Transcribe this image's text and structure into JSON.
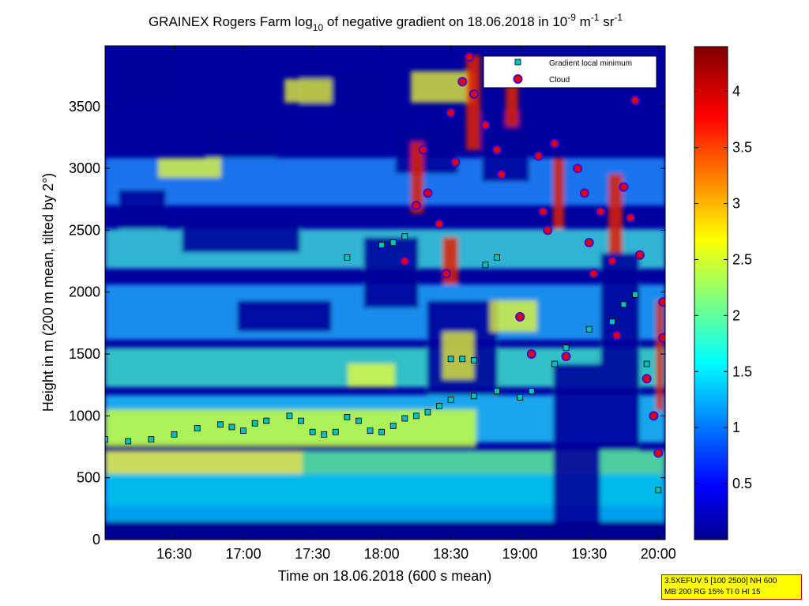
{
  "chart_data": {
    "type": "heatmap",
    "title_parts": {
      "prefix": "GRAINEX Rogers Farm log",
      "log_base": "10",
      "mid": " of negative gradient on 18.06.2018 in 10",
      "exp1": "-9",
      "unit1": " m",
      "exp2": "-1",
      "unit2": " sr",
      "exp3": "-1"
    },
    "xlabel": "Time on 18.06.2018 (600 s mean)",
    "ylabel": "Height in m (200 m mean, tilted by 2°)",
    "xlim": [
      "16:00",
      "20:03"
    ],
    "ylim": [
      0,
      3990
    ],
    "x_ticks": [
      "16:30",
      "17:00",
      "17:30",
      "18:00",
      "18:30",
      "19:00",
      "19:30",
      "20:00"
    ],
    "y_ticks": [
      "0",
      "500",
      "1000",
      "1500",
      "2000",
      "2500",
      "3000",
      "3500"
    ],
    "colorbar": {
      "range": [
        0,
        4.4
      ],
      "ticks": [
        "0.5",
        "1",
        "1.5",
        "2",
        "2.5",
        "3",
        "3.5",
        "4"
      ],
      "colormap": "jet"
    },
    "legend": {
      "placement": "top-right",
      "entries": [
        {
          "label": "Gradient local minimum",
          "marker": "square",
          "color": "#00bfbf"
        },
        {
          "label": "Cloud",
          "marker": "circle",
          "color": "#e00000"
        }
      ]
    },
    "gradient_local_minimum_series": [
      {
        "time": "16:00",
        "height": 810
      },
      {
        "time": "16:10",
        "height": 795
      },
      {
        "time": "16:20",
        "height": 810
      },
      {
        "time": "16:30",
        "height": 850
      },
      {
        "time": "16:40",
        "height": 900
      },
      {
        "time": "16:50",
        "height": 930
      },
      {
        "time": "16:55",
        "height": 910
      },
      {
        "time": "17:00",
        "height": 880
      },
      {
        "time": "17:05",
        "height": 940
      },
      {
        "time": "17:10",
        "height": 960
      },
      {
        "time": "17:20",
        "height": 1000
      },
      {
        "time": "17:25",
        "height": 960
      },
      {
        "time": "17:30",
        "height": 870
      },
      {
        "time": "17:35",
        "height": 850
      },
      {
        "time": "17:40",
        "height": 870
      },
      {
        "time": "17:45",
        "height": 990
      },
      {
        "time": "17:50",
        "height": 960
      },
      {
        "time": "17:55",
        "height": 880
      },
      {
        "time": "18:00",
        "height": 870
      },
      {
        "time": "18:05",
        "height": 920
      },
      {
        "time": "18:10",
        "height": 980
      },
      {
        "time": "18:15",
        "height": 1000
      },
      {
        "time": "18:20",
        "height": 1030
      },
      {
        "time": "18:25",
        "height": 1080
      },
      {
        "time": "18:30",
        "height": 1130
      },
      {
        "time": "18:40",
        "height": 1160
      },
      {
        "time": "18:50",
        "height": 1200
      },
      {
        "time": "19:00",
        "height": 1150
      },
      {
        "time": "19:05",
        "height": 1200
      },
      {
        "time": "18:30",
        "height": 1460
      },
      {
        "time": "18:35",
        "height": 1460
      },
      {
        "time": "18:40",
        "height": 1450
      },
      {
        "time": "18:00",
        "height": 2380
      },
      {
        "time": "18:05",
        "height": 2400
      },
      {
        "time": "18:10",
        "height": 2450
      },
      {
        "time": "18:45",
        "height": 2220
      },
      {
        "time": "18:50",
        "height": 2280
      },
      {
        "time": "17:45",
        "height": 2280
      },
      {
        "time": "19:15",
        "height": 1420
      },
      {
        "time": "19:20",
        "height": 1550
      },
      {
        "time": "19:30",
        "height": 1700
      },
      {
        "time": "19:40",
        "height": 1760
      },
      {
        "time": "19:45",
        "height": 1900
      },
      {
        "time": "19:50",
        "height": 1980
      },
      {
        "time": "19:55",
        "height": 1420
      },
      {
        "time": "20:00",
        "height": 400
      }
    ],
    "cloud_series": [
      {
        "time": "18:10",
        "height": 2250
      },
      {
        "time": "18:15",
        "height": 2700
      },
      {
        "time": "18:18",
        "height": 3150
      },
      {
        "time": "18:20",
        "height": 2800
      },
      {
        "time": "18:25",
        "height": 2550
      },
      {
        "time": "18:28",
        "height": 2150
      },
      {
        "time": "18:30",
        "height": 3450
      },
      {
        "time": "18:32",
        "height": 3050
      },
      {
        "time": "18:35",
        "height": 3700
      },
      {
        "time": "18:38",
        "height": 3900
      },
      {
        "time": "18:40",
        "height": 3600
      },
      {
        "time": "18:45",
        "height": 3350
      },
      {
        "time": "18:50",
        "height": 3150
      },
      {
        "time": "18:52",
        "height": 2950
      },
      {
        "time": "19:00",
        "height": 1800
      },
      {
        "time": "19:05",
        "height": 1500
      },
      {
        "time": "19:08",
        "height": 3100
      },
      {
        "time": "19:10",
        "height": 2650
      },
      {
        "time": "19:12",
        "height": 2500
      },
      {
        "time": "19:15",
        "height": 3200
      },
      {
        "time": "19:20",
        "height": 1480
      },
      {
        "time": "19:25",
        "height": 3000
      },
      {
        "time": "19:28",
        "height": 2800
      },
      {
        "time": "19:30",
        "height": 2400
      },
      {
        "time": "19:32",
        "height": 2150
      },
      {
        "time": "19:35",
        "height": 2650
      },
      {
        "time": "19:40",
        "height": 2250
      },
      {
        "time": "19:42",
        "height": 1650
      },
      {
        "time": "19:45",
        "height": 2850
      },
      {
        "time": "19:48",
        "height": 2600
      },
      {
        "time": "19:50",
        "height": 3550
      },
      {
        "time": "19:52",
        "height": 2300
      },
      {
        "time": "19:55",
        "height": 1300
      },
      {
        "time": "19:58",
        "height": 1000
      },
      {
        "time": "20:00",
        "height": 700
      },
      {
        "time": "20:02",
        "height": 1920
      },
      {
        "time": "20:02",
        "height": 1630
      }
    ]
  },
  "info_box": {
    "line1": "3.5XEFUV 5 [100 2500] NH 600",
    "line2": "MB 200 RG 15% TI 0 HI 15"
  }
}
